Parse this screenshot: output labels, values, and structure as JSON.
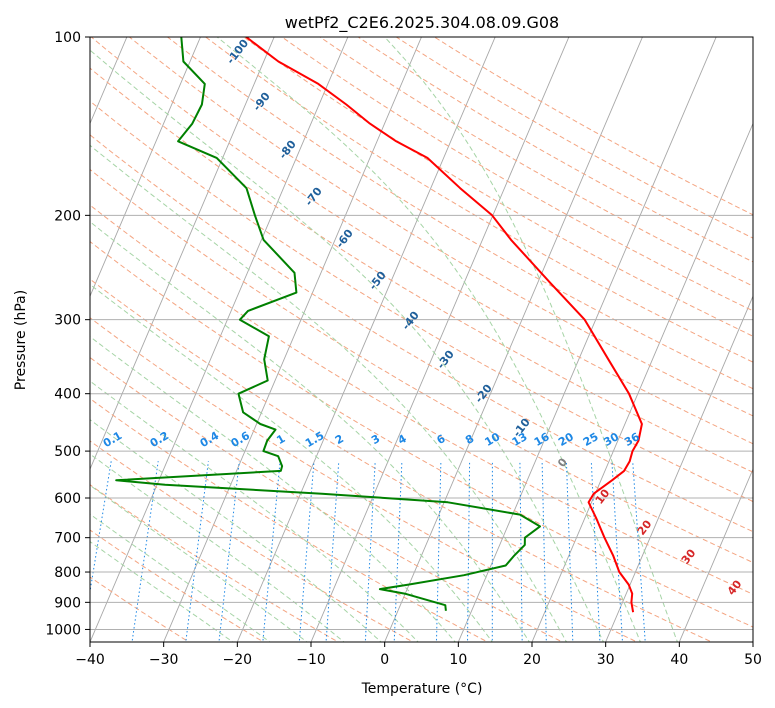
{
  "chart_data": {
    "type": "line",
    "subtype": "skew-t log-p diagram",
    "title": "wetPf2_C2E6.2025.304.08.09.G08",
    "xlabel": "Temperature (°C)",
    "ylabel": "Pressure (hPa)",
    "xlim": [
      -40,
      50
    ],
    "ylim": [
      1050,
      100
    ],
    "x_ticks": [
      -40,
      -30,
      -20,
      -10,
      0,
      10,
      20,
      30,
      40,
      50
    ],
    "x_tick_labels": [
      "−40",
      "−30",
      "−20",
      "−10",
      "0",
      "10",
      "20",
      "30",
      "40",
      "50"
    ],
    "y_ticks": [
      1000,
      900,
      800,
      700,
      600,
      500,
      400,
      300,
      200,
      100
    ],
    "y_tick_labels": [
      "1000",
      "900",
      "800",
      "700",
      "600",
      "500",
      "400",
      "300",
      "200",
      "100"
    ],
    "grid": true,
    "series": [
      {
        "name": "temperature",
        "color": "#ff0000",
        "points": [
          [
            935,
            32.0
          ],
          [
            900,
            31.2
          ],
          [
            870,
            30.8
          ],
          [
            840,
            29.8
          ],
          [
            800,
            27.8
          ],
          [
            750,
            26.0
          ],
          [
            700,
            23.8
          ],
          [
            650,
            21.6
          ],
          [
            610,
            19.6
          ],
          [
            590,
            19.8
          ],
          [
            560,
            21.5
          ],
          [
            540,
            22.6
          ],
          [
            520,
            22.8
          ],
          [
            500,
            22.6
          ],
          [
            480,
            22.8
          ],
          [
            450,
            22.3
          ],
          [
            400,
            18.8
          ],
          [
            350,
            14.0
          ],
          [
            300,
            8.5
          ],
          [
            260,
            1.7
          ],
          [
            220,
            -6.1
          ],
          [
            200,
            -10.1
          ],
          [
            180,
            -16.0
          ],
          [
            160,
            -22.2
          ],
          [
            150,
            -27.4
          ],
          [
            140,
            -32.0
          ],
          [
            130,
            -36.3
          ],
          [
            120,
            -41.3
          ],
          [
            110,
            -48.0
          ],
          [
            100,
            -53.8
          ]
        ]
      },
      {
        "name": "dewpoint",
        "color": "#008000",
        "points": [
          [
            930,
            6.5
          ],
          [
            910,
            6.1
          ],
          [
            870,
            -0.1
          ],
          [
            855,
            -3.7
          ],
          [
            840,
            -0.1
          ],
          [
            810,
            6.9
          ],
          [
            780,
            12.0
          ],
          [
            750,
            12.6
          ],
          [
            720,
            13.4
          ],
          [
            700,
            13.0
          ],
          [
            670,
            14.4
          ],
          [
            640,
            11.0
          ],
          [
            610,
            0.5
          ],
          [
            590,
            -17.1
          ],
          [
            570,
            -38.9
          ],
          [
            560,
            -45.8
          ],
          [
            540,
            -24.0
          ],
          [
            530,
            -24.1
          ],
          [
            510,
            -25.2
          ],
          [
            500,
            -27.5
          ],
          [
            480,
            -27.6
          ],
          [
            460,
            -27.1
          ],
          [
            450,
            -29.5
          ],
          [
            430,
            -32.5
          ],
          [
            400,
            -34.2
          ],
          [
            380,
            -31.0
          ],
          [
            350,
            -32.7
          ],
          [
            320,
            -33.4
          ],
          [
            300,
            -38.3
          ],
          [
            290,
            -37.7
          ],
          [
            270,
            -32.2
          ],
          [
            250,
            -33.6
          ],
          [
            220,
            -39.7
          ],
          [
            200,
            -42.3
          ],
          [
            180,
            -45.0
          ],
          [
            160,
            -50.8
          ],
          [
            150,
            -57.0
          ],
          [
            140,
            -56.1
          ],
          [
            130,
            -55.9
          ],
          [
            120,
            -56.7
          ],
          [
            110,
            -60.9
          ],
          [
            100,
            -62.6
          ]
        ]
      }
    ],
    "dry_adiabat_labels": [
      "-100",
      "-90",
      "-80",
      "-70",
      "-60",
      "-50",
      "-40",
      "-30",
      "-20",
      "-10",
      "0",
      "10",
      "20",
      "30",
      "40"
    ],
    "mixing_ratio_labels": [
      "0.1",
      "0.2",
      "0.4",
      "0.6",
      "1",
      "1.5",
      "2",
      "3",
      "4",
      "6",
      "8",
      "10",
      "13",
      "16",
      "20",
      "25",
      "30",
      "36"
    ]
  },
  "colors": {
    "temperature": "#ff0000",
    "dewpoint": "#008000",
    "grid": "#b0b0b0",
    "skewed_isotherm": "#a8a8a8",
    "dry_adiabat": "#f4a582",
    "moist_adiabat": "#a6d4a6",
    "mixing_ratio": "#1e88e5",
    "dry_adiabat_label_cold": "#1f5f9a",
    "dry_adiabat_label_warm": "#d62728",
    "zero_label": "#808080"
  }
}
